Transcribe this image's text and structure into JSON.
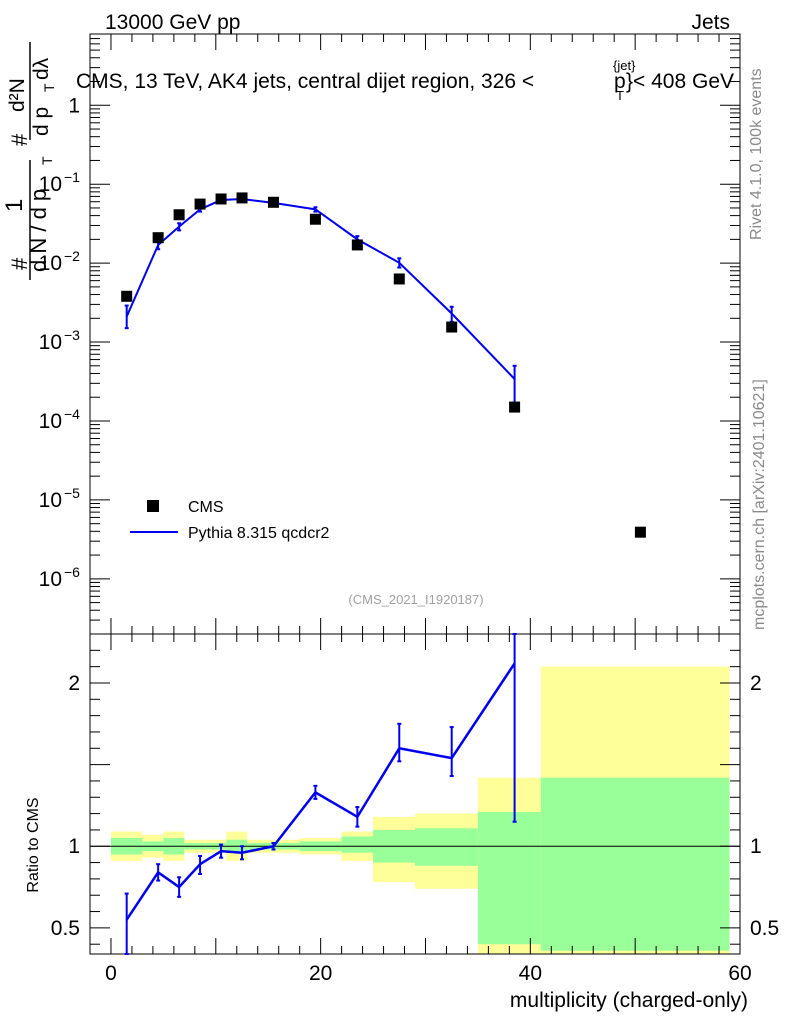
{
  "header": {
    "energy": "13000 GeV pp",
    "process": "Jets",
    "rivet": "Rivet 4.1.0,  100k events",
    "mcplots": "mcplots.cern.ch [arXiv:2401.10621]",
    "analysis_id": "(CMS_2021_I1920187)"
  },
  "chart_data": [
    {
      "type": "scatter",
      "panel": "main",
      "title": "CMS, 13 TeV, AK4 jets, central dijet region, 326 < p_T^{jet} < 408 GeV",
      "title_parts": {
        "pre": "CMS, 13 TeV, AK4 jets, central dijet region, 326 <",
        "p": "p",
        "sub": "T",
        "sup": "{jet}",
        "post": "}< 408 GeV"
      },
      "ylabel": "1/dN/dp_T · d²N/dp_T dλ",
      "ylabel_parts": {
        "hash1": "#",
        "one": "1",
        "hash2": "#",
        "frac": "d N / d p",
        "sub": "T",
        "num": "d²N",
        "den": "d p",
        "den_sub": "T",
        "den_tail": " dλ"
      },
      "yscale": "log",
      "ylim": [
        2e-07,
        8
      ],
      "y_ticks": [
        {
          "v": 1,
          "label": "1",
          "exp": ""
        },
        {
          "v": 0.1,
          "label": "10",
          "exp": "−1"
        },
        {
          "v": 0.01,
          "label": "10",
          "exp": "−2"
        },
        {
          "v": 0.001,
          "label": "10",
          "exp": "−3"
        },
        {
          "v": 0.0001,
          "label": "10",
          "exp": "−4"
        },
        {
          "v": 1e-05,
          "label": "10",
          "exp": "−5"
        },
        {
          "v": 1e-06,
          "label": "10",
          "exp": "−6"
        }
      ],
      "xlim": [
        -2,
        60
      ],
      "legend": {
        "position": "bottom-left",
        "entries": [
          {
            "label": "CMS",
            "marker": "square",
            "color": "#000000"
          },
          {
            "label": "Pythia 8.315 qcdcr2",
            "marker": "line",
            "color": "#0000ee"
          }
        ]
      },
      "series": [
        {
          "name": "CMS",
          "x": [
            1.5,
            4.5,
            6.5,
            8.5,
            10.5,
            12.5,
            15.5,
            19.5,
            23.5,
            27.5,
            32.5,
            38.5,
            50.5
          ],
          "y": [
            0.0038,
            0.021,
            0.041,
            0.056,
            0.065,
            0.067,
            0.059,
            0.036,
            0.017,
            0.0063,
            0.00155,
            0.00015,
            3.9e-06
          ]
        },
        {
          "name": "Pythia 8.315 qcdcr2",
          "color": "#0000ee",
          "x": [
            1.5,
            4.5,
            6.5,
            8.5,
            10.5,
            12.5,
            15.5,
            19.5,
            23.5,
            27.5,
            32.5,
            38.5
          ],
          "y": [
            0.0021,
            0.017,
            0.029,
            0.048,
            0.063,
            0.065,
            0.058,
            0.048,
            0.02,
            0.0101,
            0.0023,
            0.00034
          ],
          "y_err_low": [
            0.0015,
            0.015,
            0.026,
            0.045,
            0.06,
            0.062,
            0.055,
            0.045,
            0.018,
            0.0088,
            0.0018,
            0.00015
          ],
          "y_err_high": [
            0.0029,
            0.019,
            0.032,
            0.052,
            0.067,
            0.069,
            0.061,
            0.051,
            0.022,
            0.0115,
            0.0028,
            0.0005
          ]
        }
      ]
    },
    {
      "type": "line",
      "panel": "ratio",
      "ylabel": "Ratio to CMS",
      "xlabel": "multiplicity (charged-only)",
      "xlim": [
        -2,
        60
      ],
      "ylim": [
        0.34,
        2.3
      ],
      "x_ticks": [
        0,
        20,
        40,
        60
      ],
      "y_ticks": [
        {
          "v": 0.5,
          "label": "0.5"
        },
        {
          "v": 1,
          "label": "1"
        },
        {
          "v": 2,
          "label": "2"
        }
      ],
      "bands": [
        {
          "x0": 0,
          "x1": 3,
          "inner_lo": 0.95,
          "inner_hi": 1.05,
          "outer_lo": 0.91,
          "outer_hi": 1.09
        },
        {
          "x0": 3,
          "x1": 5,
          "inner_lo": 0.97,
          "inner_hi": 1.03,
          "outer_lo": 0.93,
          "outer_hi": 1.07
        },
        {
          "x0": 5,
          "x1": 7,
          "inner_lo": 0.95,
          "inner_hi": 1.05,
          "outer_lo": 0.91,
          "outer_hi": 1.09
        },
        {
          "x0": 7,
          "x1": 9,
          "inner_lo": 0.98,
          "inner_hi": 1.02,
          "outer_lo": 0.96,
          "outer_hi": 1.04
        },
        {
          "x0": 9,
          "x1": 11,
          "inner_lo": 0.98,
          "inner_hi": 1.02,
          "outer_lo": 0.96,
          "outer_hi": 1.04
        },
        {
          "x0": 11,
          "x1": 13,
          "inner_lo": 0.96,
          "inner_hi": 1.04,
          "outer_lo": 0.91,
          "outer_hi": 1.09
        },
        {
          "x0": 13,
          "x1": 18,
          "inner_lo": 0.98,
          "inner_hi": 1.02,
          "outer_lo": 0.96,
          "outer_hi": 1.04
        },
        {
          "x0": 18,
          "x1": 22,
          "inner_lo": 0.97,
          "inner_hi": 1.03,
          "outer_lo": 0.95,
          "outer_hi": 1.05
        },
        {
          "x0": 22,
          "x1": 25,
          "inner_lo": 0.96,
          "inner_hi": 1.06,
          "outer_lo": 0.91,
          "outer_hi": 1.09
        },
        {
          "x0": 25,
          "x1": 29,
          "inner_lo": 0.9,
          "inner_hi": 1.1,
          "outer_lo": 0.78,
          "outer_hi": 1.18
        },
        {
          "x0": 29,
          "x1": 35,
          "inner_lo": 0.88,
          "inner_hi": 1.11,
          "outer_lo": 0.74,
          "outer_hi": 1.2
        },
        {
          "x0": 35,
          "x1": 41,
          "inner_lo": 0.4,
          "inner_hi": 1.21,
          "outer_lo": 0.34,
          "outer_hi": 1.42
        },
        {
          "x0": 41,
          "x1": 59,
          "inner_lo": 0.36,
          "inner_hi": 1.42,
          "outer_lo": 0.34,
          "outer_hi": 2.1
        }
      ],
      "series": [
        {
          "name": "Pythia 8.315 qcdcr2 / CMS",
          "color": "#0000ee",
          "x": [
            1.5,
            4.5,
            6.5,
            8.5,
            10.5,
            12.5,
            15.5,
            19.5,
            23.5,
            27.5,
            32.5,
            38.5
          ],
          "y": [
            0.55,
            0.84,
            0.75,
            0.89,
            0.97,
            0.96,
            1.0,
            1.33,
            1.18,
            1.6,
            1.54,
            2.12
          ],
          "y_err_low": [
            0.34,
            0.79,
            0.69,
            0.83,
            0.93,
            0.92,
            0.98,
            1.29,
            1.12,
            1.52,
            1.43,
            1.15
          ],
          "y_err_high": [
            0.71,
            0.89,
            0.81,
            0.94,
            1.01,
            1.0,
            1.02,
            1.37,
            1.24,
            1.75,
            1.73,
            2.3
          ]
        }
      ]
    }
  ]
}
